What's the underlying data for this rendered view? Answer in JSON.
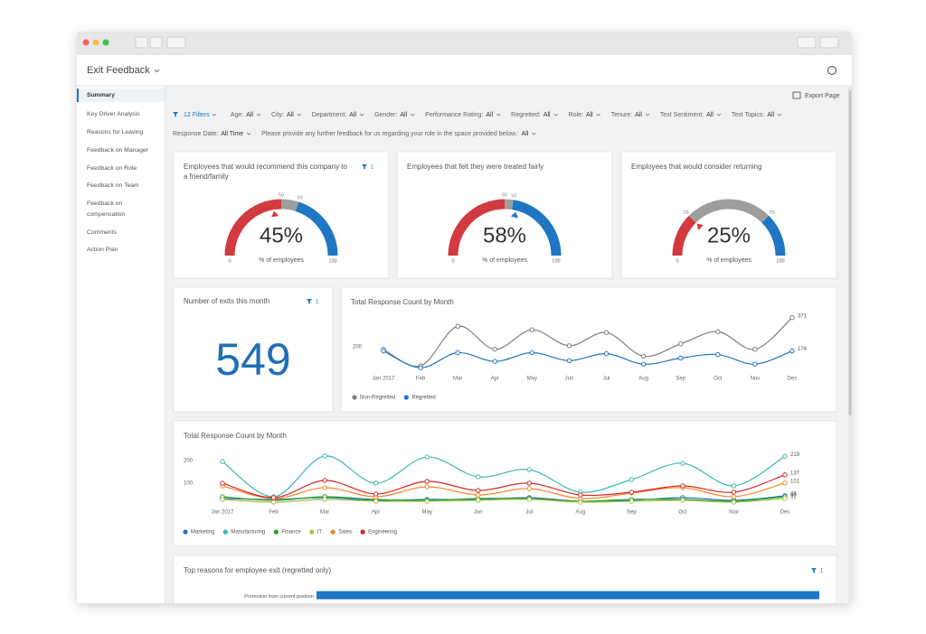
{
  "window": {
    "app_title": "Exit Feedback",
    "export": "Export Page"
  },
  "sidebar": [
    "Summary",
    "Key Driver Analysis",
    "Reasons for Leaving",
    "Feedback on Manager",
    "Feedback on Role",
    "Feedback on Team",
    "Feedback on compensation",
    "Comments",
    "Action Plan"
  ],
  "filters": {
    "count": "12 Filters",
    "items": [
      {
        "label": "Age:",
        "value": "All"
      },
      {
        "label": "City:",
        "value": "All"
      },
      {
        "label": "Department:",
        "value": "All"
      },
      {
        "label": "Gender:",
        "value": "All"
      },
      {
        "label": "Performance Rating:",
        "value": "All"
      },
      {
        "label": "Regretted:",
        "value": "All"
      },
      {
        "label": "Role:",
        "value": "All"
      },
      {
        "label": "Tenure:",
        "value": "All"
      },
      {
        "label": "Text Sentiment:",
        "value": "All"
      },
      {
        "label": "Text Topics:",
        "value": "All"
      },
      {
        "label": "Response Date:",
        "value": "All Time"
      },
      {
        "label": "Please provide any further feedback for us regarding your role in the space provided below.:",
        "value": "All"
      }
    ]
  },
  "exits": {
    "title": "Number of exits this month",
    "value": 549,
    "filter_badge": 1
  },
  "chart_data": [
    {
      "type": "gauge",
      "title": "Employees that would recommend this company to a friend/family",
      "filter_badge": 1,
      "value": 45,
      "value_label": "45%",
      "caption": "% of employees",
      "min": 0,
      "max": 100,
      "bands": [
        {
          "to": 50,
          "color": "#d13b3f"
        },
        {
          "to": 60,
          "color": "#9e9e9e"
        },
        {
          "to": 100,
          "color": "#1f77c4"
        }
      ]
    },
    {
      "type": "gauge",
      "title": "Employees that felt they were treated fairly",
      "value": 58,
      "value_label": "58%",
      "caption": "% of employees",
      "min": 0,
      "max": 100,
      "bands": [
        {
          "to": 50,
          "color": "#d13b3f"
        },
        {
          "to": 55,
          "color": "#9e9e9e"
        },
        {
          "to": 100,
          "color": "#1f77c4"
        }
      ]
    },
    {
      "type": "gauge",
      "title": "Employees that would consider returning",
      "value": 25,
      "value_label": "25%",
      "caption": "% of employees",
      "min": 0,
      "max": 100,
      "bands": [
        {
          "to": 25,
          "color": "#d13b3f"
        },
        {
          "to": 75,
          "color": "#9e9e9e"
        },
        {
          "to": 100,
          "color": "#1f77c4"
        }
      ]
    },
    {
      "type": "line",
      "title": "Total Response Count by Month",
      "categories": [
        "Jan 2017",
        "Feb",
        "Mar",
        "Apr",
        "May",
        "Jun",
        "Jul",
        "Aug",
        "Sep",
        "Oct",
        "Nov",
        "Dec"
      ],
      "ylim": [
        60,
        380
      ],
      "yticks": [
        200
      ],
      "series": [
        {
          "name": "Non-Regretted",
          "color": "#7f7f7f",
          "values": [
            184,
            86,
            320,
            184,
            299,
            205,
            283,
            143,
            216,
            288,
            184,
            371
          ]
        },
        {
          "name": "Regretted",
          "color": "#1f77c4",
          "values": [
            174,
            75,
            164,
            112,
            164,
            117,
            158,
            96,
            132,
            153,
            96,
            174
          ]
        }
      ]
    },
    {
      "type": "line",
      "title": "Total Response Count by Month",
      "categories": [
        "Jan 2017",
        "Feb",
        "Mar",
        "Apr",
        "May",
        "Jun",
        "Jul",
        "Aug",
        "Sep",
        "Oct",
        "Nov",
        "Dec"
      ],
      "ylim": [
        0,
        240
      ],
      "yticks": [
        100,
        200
      ],
      "series": [
        {
          "name": "Marketing",
          "color": "#1f77c4",
          "values": [
            32,
            28,
            36,
            24,
            28,
            28,
            36,
            20,
            24,
            36,
            24,
            44
          ]
        },
        {
          "name": "Manufacturing",
          "color": "#3db8b0",
          "values": [
            196,
            40,
            220,
            100,
            216,
            128,
            160,
            60,
            116,
            188,
            88,
            219
          ]
        },
        {
          "name": "Finance",
          "color": "#2ca02c",
          "values": [
            40,
            24,
            40,
            28,
            24,
            32,
            32,
            20,
            28,
            28,
            20,
            40
          ]
        },
        {
          "name": "IT",
          "color": "#a9c23f",
          "values": [
            28,
            16,
            28,
            20,
            20,
            24,
            28,
            16,
            20,
            24,
            16,
            32
          ]
        },
        {
          "name": "Sales",
          "color": "#f5862a",
          "values": [
            88,
            32,
            80,
            40,
            84,
            48,
            76,
            32,
            56,
            80,
            40,
            101
          ]
        },
        {
          "name": "Engineering",
          "color": "#d62728",
          "values": [
            100,
            36,
            112,
            52,
            108,
            68,
            100,
            48,
            60,
            88,
            60,
            137
          ]
        }
      ]
    },
    {
      "type": "bar",
      "title": "Top reasons for employee exit (regretted only)",
      "filter_badge": 1,
      "categories": [
        "Promotion from current position"
      ],
      "values": [
        100
      ],
      "xlim": [
        0,
        100
      ],
      "color": "#1f77c4"
    }
  ]
}
